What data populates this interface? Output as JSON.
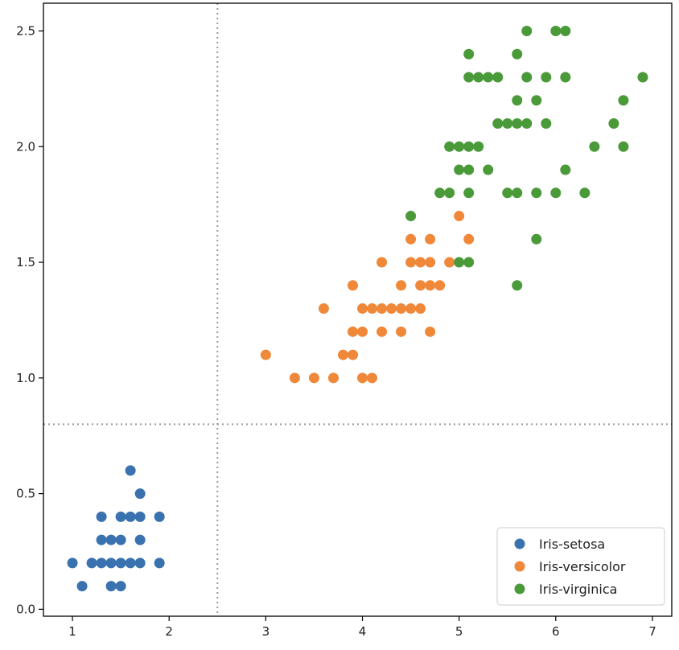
{
  "chart_data": {
    "type": "scatter",
    "title": "",
    "xlabel": "",
    "ylabel": "",
    "xlim": [
      0.7,
      7.2
    ],
    "ylim": [
      -0.03,
      2.62
    ],
    "grid": false,
    "legend_location": "lower-right",
    "x_ticks": [
      1,
      2,
      3,
      4,
      5,
      6,
      7
    ],
    "x_tick_labels": [
      "1",
      "2",
      "3",
      "4",
      "5",
      "6",
      "7"
    ],
    "y_ticks": [
      0.0,
      0.5,
      1.0,
      1.5,
      2.0,
      2.5
    ],
    "y_tick_labels": [
      "0.0",
      "0.5",
      "1.0",
      "1.5",
      "2.0",
      "2.5"
    ],
    "reference_lines": [
      {
        "orientation": "vertical",
        "value": 2.5,
        "style": "dotted"
      },
      {
        "orientation": "horizontal",
        "value": 0.8,
        "style": "dotted"
      }
    ],
    "series": [
      {
        "name": "Iris-setosa",
        "color": "#3a72b0",
        "points": [
          [
            1.0,
            0.2
          ],
          [
            1.1,
            0.1
          ],
          [
            1.2,
            0.2
          ],
          [
            1.3,
            0.2
          ],
          [
            1.3,
            0.3
          ],
          [
            1.3,
            0.4
          ],
          [
            1.4,
            0.1
          ],
          [
            1.4,
            0.2
          ],
          [
            1.4,
            0.3
          ],
          [
            1.5,
            0.1
          ],
          [
            1.5,
            0.2
          ],
          [
            1.5,
            0.3
          ],
          [
            1.5,
            0.4
          ],
          [
            1.6,
            0.2
          ],
          [
            1.6,
            0.4
          ],
          [
            1.6,
            0.6
          ],
          [
            1.7,
            0.2
          ],
          [
            1.7,
            0.3
          ],
          [
            1.7,
            0.4
          ],
          [
            1.7,
            0.5
          ],
          [
            1.9,
            0.2
          ],
          [
            1.9,
            0.4
          ]
        ]
      },
      {
        "name": "Iris-versicolor",
        "color": "#f0883a",
        "points": [
          [
            3.0,
            1.1
          ],
          [
            3.3,
            1.0
          ],
          [
            3.5,
            1.0
          ],
          [
            3.6,
            1.3
          ],
          [
            3.7,
            1.0
          ],
          [
            3.8,
            1.1
          ],
          [
            3.9,
            1.1
          ],
          [
            3.9,
            1.2
          ],
          [
            3.9,
            1.4
          ],
          [
            4.0,
            1.0
          ],
          [
            4.0,
            1.2
          ],
          [
            4.0,
            1.3
          ],
          [
            4.1,
            1.0
          ],
          [
            4.1,
            1.3
          ],
          [
            4.2,
            1.2
          ],
          [
            4.2,
            1.3
          ],
          [
            4.2,
            1.5
          ],
          [
            4.3,
            1.3
          ],
          [
            4.4,
            1.2
          ],
          [
            4.4,
            1.3
          ],
          [
            4.4,
            1.4
          ],
          [
            4.5,
            1.3
          ],
          [
            4.5,
            1.5
          ],
          [
            4.5,
            1.6
          ],
          [
            4.6,
            1.3
          ],
          [
            4.6,
            1.4
          ],
          [
            4.6,
            1.5
          ],
          [
            4.7,
            1.2
          ],
          [
            4.7,
            1.4
          ],
          [
            4.7,
            1.5
          ],
          [
            4.7,
            1.6
          ],
          [
            4.8,
            1.4
          ],
          [
            4.9,
            1.5
          ],
          [
            5.0,
            1.7
          ],
          [
            5.1,
            1.6
          ]
        ]
      },
      {
        "name": "Iris-virginica",
        "color": "#4a9a3a",
        "points": [
          [
            4.5,
            1.7
          ],
          [
            4.8,
            1.8
          ],
          [
            4.9,
            1.8
          ],
          [
            4.9,
            2.0
          ],
          [
            5.0,
            1.5
          ],
          [
            5.0,
            1.9
          ],
          [
            5.0,
            2.0
          ],
          [
            5.1,
            1.5
          ],
          [
            5.1,
            1.8
          ],
          [
            5.1,
            1.9
          ],
          [
            5.1,
            2.0
          ],
          [
            5.1,
            2.3
          ],
          [
            5.1,
            2.4
          ],
          [
            5.2,
            2.0
          ],
          [
            5.2,
            2.3
          ],
          [
            5.3,
            1.9
          ],
          [
            5.3,
            2.3
          ],
          [
            5.4,
            2.1
          ],
          [
            5.4,
            2.3
          ],
          [
            5.5,
            1.8
          ],
          [
            5.5,
            2.1
          ],
          [
            5.6,
            1.4
          ],
          [
            5.6,
            1.8
          ],
          [
            5.6,
            2.1
          ],
          [
            5.6,
            2.2
          ],
          [
            5.6,
            2.4
          ],
          [
            5.7,
            2.1
          ],
          [
            5.7,
            2.3
          ],
          [
            5.7,
            2.5
          ],
          [
            5.8,
            1.6
          ],
          [
            5.8,
            1.8
          ],
          [
            5.8,
            2.2
          ],
          [
            5.9,
            2.1
          ],
          [
            5.9,
            2.3
          ],
          [
            6.0,
            1.8
          ],
          [
            6.0,
            2.5
          ],
          [
            6.1,
            1.9
          ],
          [
            6.1,
            2.3
          ],
          [
            6.1,
            2.5
          ],
          [
            6.3,
            1.8
          ],
          [
            6.4,
            2.0
          ],
          [
            6.6,
            2.1
          ],
          [
            6.7,
            2.0
          ],
          [
            6.7,
            2.2
          ],
          [
            6.9,
            2.3
          ]
        ]
      }
    ]
  }
}
